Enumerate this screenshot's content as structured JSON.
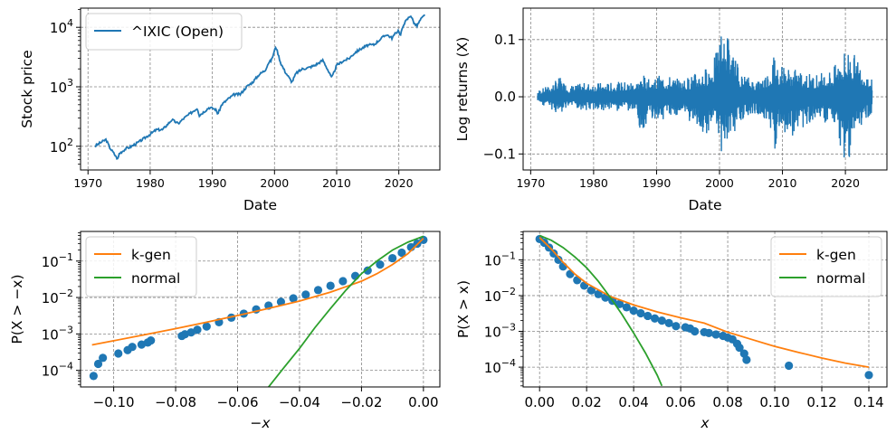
{
  "chart_data": [
    {
      "id": "price",
      "type": "line",
      "xlabel": "Date",
      "ylabel": "Stock price",
      "yscale": "log",
      "xlim": [
        1968.8,
        2026.6
      ],
      "ylim": [
        40,
        21000
      ],
      "xticks": [
        1970,
        1980,
        1990,
        2000,
        2010,
        2020
      ],
      "xtick_labels": [
        "1970",
        "1980",
        "1990",
        "2000",
        "2010",
        "2020"
      ],
      "yticks": [
        100,
        1000,
        10000
      ],
      "ytick_base": "10",
      "ytick_exponents": [
        "2",
        "3",
        "4"
      ],
      "grid": true,
      "legend": {
        "position": "top-left",
        "entries": [
          "^IXIC (Open)"
        ]
      },
      "series": [
        {
          "name": "^IXIC (Open)",
          "color": "#1f77b4",
          "x": [
            1971.1,
            1972.0,
            1972.9,
            1973.5,
            1974.2,
            1974.8,
            1975.0,
            1976.0,
            1977.0,
            1978.0,
            1979.0,
            1980.0,
            1981.0,
            1982.0,
            1983.5,
            1984.5,
            1985.5,
            1986.5,
            1987.6,
            1987.9,
            1988.5,
            1989.5,
            1990.5,
            1990.9,
            1991.5,
            1992.5,
            1993.5,
            1994.5,
            1995.5,
            1996.5,
            1997.5,
            1998.5,
            1999.0,
            1999.5,
            2000.0,
            2000.2,
            2000.5,
            2001.0,
            2001.7,
            2002.8,
            2003.5,
            2004.5,
            2005.5,
            2006.5,
            2007.8,
            2008.5,
            2009.2,
            2010.0,
            2011.0,
            2012.0,
            2013.0,
            2014.0,
            2015.0,
            2016.0,
            2017.0,
            2018.0,
            2018.9,
            2019.5,
            2020.0,
            2020.2,
            2020.8,
            2021.9,
            2022.5,
            2022.9,
            2023.5,
            2024.2
          ],
          "y": [
            100,
            115,
            130,
            95,
            75,
            60,
            75,
            90,
            100,
            115,
            135,
            160,
            190,
            190,
            280,
            240,
            300,
            360,
            440,
            330,
            370,
            450,
            420,
            350,
            500,
            620,
            740,
            750,
            1000,
            1200,
            1600,
            1900,
            2500,
            2800,
            4000,
            4800,
            3800,
            2500,
            1800,
            1200,
            1700,
            2000,
            2100,
            2300,
            2800,
            2000,
            1400,
            2300,
            2700,
            3000,
            3800,
            4400,
            5000,
            5100,
            6300,
            7600,
            6600,
            8000,
            9000,
            7000,
            11500,
            16000,
            11500,
            10500,
            13500,
            16200
          ]
        }
      ]
    },
    {
      "id": "returns",
      "type": "line",
      "xlabel": "Date",
      "ylabel": "Log returns (X)",
      "xlim": [
        1968.8,
        2026.6
      ],
      "ylim": [
        -0.128,
        0.155
      ],
      "xticks": [
        1970,
        1980,
        1990,
        2000,
        2010,
        2020
      ],
      "xtick_labels": [
        "1970",
        "1980",
        "1990",
        "2000",
        "2010",
        "2020"
      ],
      "yticks": [
        -0.1,
        0.0,
        0.1
      ],
      "ytick_labels": [
        "−0.1",
        "0.0",
        "0.1"
      ],
      "grid": true,
      "series": [
        {
          "name": "",
          "color": "#1f77b4",
          "x": [
            1971.1,
            1973.0,
            1974.5,
            1976.0,
            1979.0,
            1983.0,
            1987.0,
            1987.8,
            1988.5,
            1991.0,
            1994.0,
            1997.5,
            1998.6,
            1999.5,
            2000.3,
            2000.7,
            2001.1,
            2001.8,
            2002.5,
            2003.5,
            2006.0,
            2008.0,
            2008.8,
            2009.3,
            2011.5,
            2015.0,
            2018.0,
            2020.2,
            2022.5,
            2024.2
          ],
          "lower": [
            -0.012,
            -0.02,
            -0.035,
            -0.02,
            -0.025,
            -0.025,
            -0.03,
            -0.115,
            -0.04,
            -0.04,
            -0.03,
            -0.07,
            -0.06,
            -0.05,
            -0.1,
            -0.1,
            -0.08,
            -0.07,
            -0.06,
            -0.04,
            -0.03,
            -0.05,
            -0.095,
            -0.06,
            -0.07,
            -0.04,
            -0.05,
            -0.12,
            -0.05,
            -0.03
          ],
          "upper": [
            0.012,
            0.02,
            0.035,
            0.02,
            0.025,
            0.025,
            0.03,
            0.04,
            0.03,
            0.04,
            0.03,
            0.05,
            0.06,
            0.08,
            0.125,
            0.1,
            0.13,
            0.08,
            0.07,
            0.04,
            0.03,
            0.05,
            0.085,
            0.06,
            0.05,
            0.04,
            0.05,
            0.09,
            0.06,
            0.03
          ]
        }
      ]
    },
    {
      "id": "left-tail",
      "type": "scatter",
      "xlabel": "−x",
      "ylabel": "P(X > −x)",
      "yscale": "log",
      "xlim": [
        -0.1107,
        0.0053
      ],
      "ylim": [
        3.5e-05,
        0.65
      ],
      "xticks": [
        -0.1,
        -0.08,
        -0.06,
        -0.04,
        -0.02,
        0.0
      ],
      "xtick_labels": [
        "−0.10",
        "−0.08",
        "−0.06",
        "−0.04",
        "−0.02",
        "0.00"
      ],
      "yticks": [
        0.0001,
        0.001,
        0.01,
        0.1
      ],
      "ytick_base": "10",
      "ytick_exponents": [
        "−4",
        "−3",
        "−2",
        "−1"
      ],
      "grid": true,
      "legend": {
        "position": "top-left",
        "entries": [
          "k-gen",
          "normal"
        ]
      },
      "series": [
        {
          "name": "",
          "kind": "scatter",
          "color": "#1f77b4",
          "x": [
            -0.1065,
            -0.105,
            -0.1035,
            -0.0985,
            -0.0955,
            -0.094,
            -0.091,
            -0.089,
            -0.088,
            -0.078,
            -0.077,
            -0.075,
            -0.073,
            -0.07,
            -0.066,
            -0.062,
            -0.058,
            -0.054,
            -0.05,
            -0.046,
            -0.042,
            -0.038,
            -0.034,
            -0.03,
            -0.026,
            -0.022,
            -0.018,
            -0.014,
            -0.01,
            -0.007,
            -0.004,
            -0.002,
            0.0
          ],
          "y": [
            7e-05,
            0.00015,
            0.00022,
            0.00029,
            0.00036,
            0.00044,
            0.00051,
            0.00058,
            0.00066,
            0.00088,
            0.00098,
            0.0011,
            0.0013,
            0.0016,
            0.0021,
            0.0028,
            0.0036,
            0.0047,
            0.006,
            0.0076,
            0.0095,
            0.012,
            0.016,
            0.021,
            0.028,
            0.039,
            0.055,
            0.08,
            0.12,
            0.17,
            0.24,
            0.3,
            0.38
          ]
        },
        {
          "name": "k-gen",
          "kind": "line",
          "color": "#ff7f0e",
          "x": [
            -0.107,
            -0.1,
            -0.09,
            -0.08,
            -0.07,
            -0.06,
            -0.05,
            -0.04,
            -0.03,
            -0.02,
            -0.015,
            -0.01,
            -0.005,
            0.0
          ],
          "y": [
            0.0005,
            0.00065,
            0.00095,
            0.0014,
            0.0021,
            0.0032,
            0.005,
            0.008,
            0.014,
            0.028,
            0.045,
            0.08,
            0.16,
            0.42
          ]
        },
        {
          "name": "normal",
          "kind": "line",
          "color": "#2ca02c",
          "x": [
            -0.05,
            -0.045,
            -0.04,
            -0.035,
            -0.03,
            -0.025,
            -0.02,
            -0.015,
            -0.01,
            -0.005,
            0.0
          ],
          "y": [
            3.5e-05,
            0.00012,
            0.0004,
            0.0015,
            0.005,
            0.016,
            0.045,
            0.1,
            0.2,
            0.33,
            0.48
          ]
        }
      ]
    },
    {
      "id": "right-tail",
      "type": "scatter",
      "xlabel": "x",
      "ylabel": "P(X > x)",
      "yscale": "log",
      "xlim": [
        -0.007,
        0.1477
      ],
      "ylim": [
        2.8e-05,
        0.62
      ],
      "xticks": [
        0.0,
        0.02,
        0.04,
        0.06,
        0.08,
        0.1,
        0.12,
        0.14
      ],
      "xtick_labels": [
        "0.00",
        "0.02",
        "0.04",
        "0.06",
        "0.08",
        "0.10",
        "0.12",
        "0.14"
      ],
      "yticks": [
        0.0001,
        0.001,
        0.01,
        0.1
      ],
      "ytick_base": "10",
      "ytick_exponents": [
        "−4",
        "−3",
        "−2",
        "−1"
      ],
      "grid": true,
      "legend": {
        "position": "top-right",
        "entries": [
          "k-gen",
          "normal"
        ]
      },
      "series": [
        {
          "name": "",
          "kind": "scatter",
          "color": "#1f77b4",
          "x": [
            0.0,
            0.002,
            0.004,
            0.006,
            0.008,
            0.01,
            0.013,
            0.016,
            0.019,
            0.022,
            0.025,
            0.028,
            0.031,
            0.034,
            0.037,
            0.04,
            0.043,
            0.046,
            0.049,
            0.052,
            0.055,
            0.058,
            0.062,
            0.064,
            0.066,
            0.07,
            0.072,
            0.075,
            0.078,
            0.08,
            0.082,
            0.084,
            0.085,
            0.087,
            0.088,
            0.106,
            0.14
          ],
          "y": [
            0.38,
            0.3,
            0.22,
            0.15,
            0.1,
            0.065,
            0.04,
            0.027,
            0.019,
            0.014,
            0.011,
            0.0088,
            0.0072,
            0.0058,
            0.0047,
            0.0038,
            0.0032,
            0.0027,
            0.0023,
            0.002,
            0.0017,
            0.0014,
            0.0013,
            0.0012,
            0.001,
            0.00095,
            0.0009,
            0.00082,
            0.00075,
            0.00067,
            0.0006,
            0.00045,
            0.00035,
            0.00024,
            0.00016,
            0.00011,
            6e-05
          ]
        },
        {
          "name": "k-gen",
          "kind": "line",
          "color": "#ff7f0e",
          "x": [
            0.0,
            0.005,
            0.01,
            0.015,
            0.02,
            0.03,
            0.04,
            0.05,
            0.06,
            0.07,
            0.08,
            0.09,
            0.1,
            0.11,
            0.12,
            0.13,
            0.14
          ],
          "y": [
            0.42,
            0.2,
            0.085,
            0.04,
            0.022,
            0.0095,
            0.0055,
            0.0035,
            0.0024,
            0.0017,
            0.00095,
            0.0006,
            0.00038,
            0.00026,
            0.00018,
            0.00013,
            0.0001
          ]
        },
        {
          "name": "normal",
          "kind": "line",
          "color": "#2ca02c",
          "x": [
            0.0,
            0.005,
            0.01,
            0.015,
            0.02,
            0.025,
            0.03,
            0.035,
            0.04,
            0.045,
            0.05,
            0.052
          ],
          "y": [
            0.48,
            0.35,
            0.22,
            0.12,
            0.06,
            0.025,
            0.009,
            0.003,
            0.0009,
            0.00025,
            6e-05,
            3e-05
          ]
        }
      ]
    }
  ]
}
